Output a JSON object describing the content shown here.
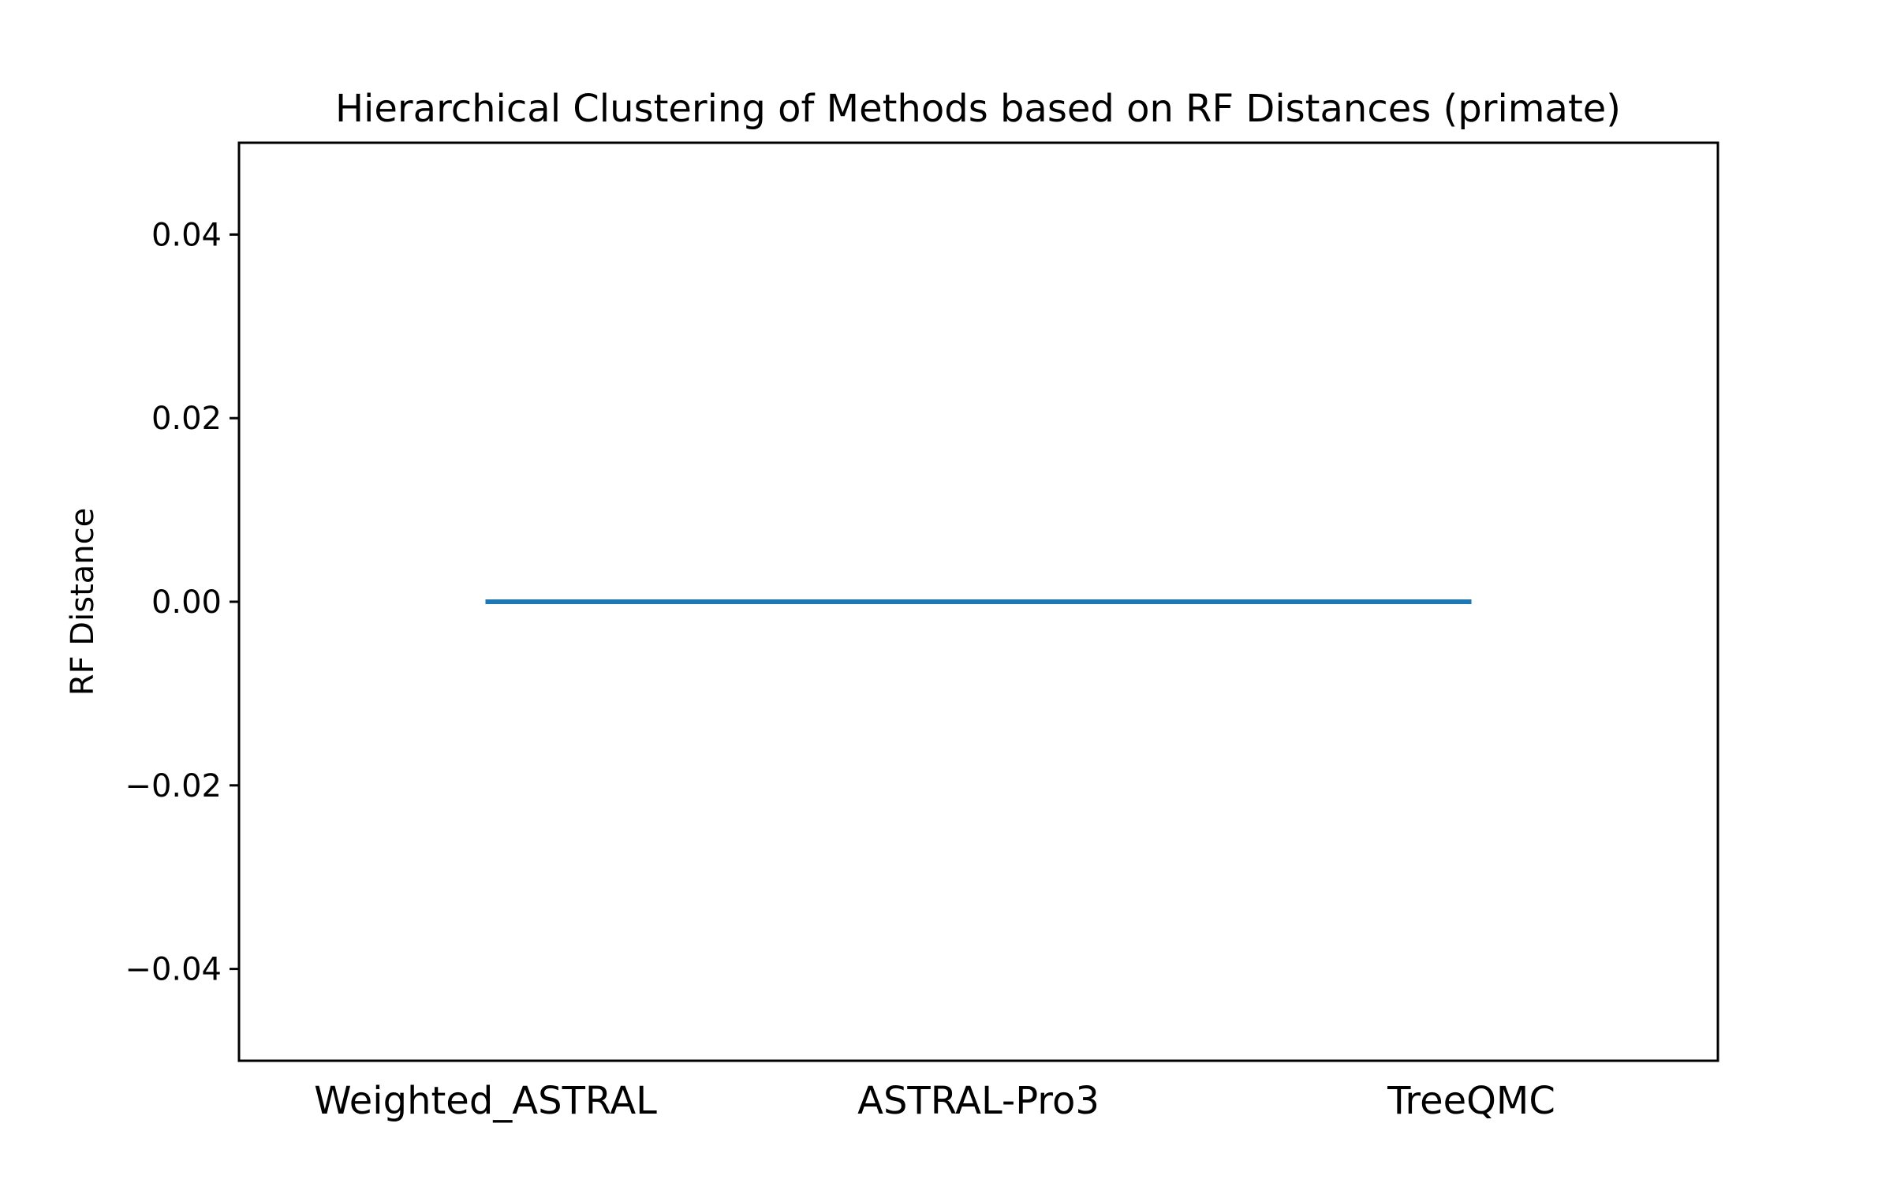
{
  "chart_data": {
    "type": "dendrogram",
    "title": "Hierarchical Clustering of Methods based on RF Distances (primate)",
    "xlabel": "",
    "ylabel": "RF Distance",
    "categories": [
      "Weighted_ASTRAL",
      "ASTRAL-Pro3",
      "TreeQMC"
    ],
    "ylim": [
      -0.05,
      0.05
    ],
    "yticks": [
      0.04,
      0.02,
      0.0,
      -0.02,
      -0.04
    ],
    "ytick_labels": [
      "0.04",
      "0.02",
      "0.00",
      "−0.02",
      "−0.04"
    ],
    "links": [
      {
        "from": "Weighted_ASTRAL",
        "to": "TreeQMC",
        "height": 0.0
      }
    ],
    "line_color": "#1f77b4",
    "grid": false,
    "legend": "none"
  }
}
